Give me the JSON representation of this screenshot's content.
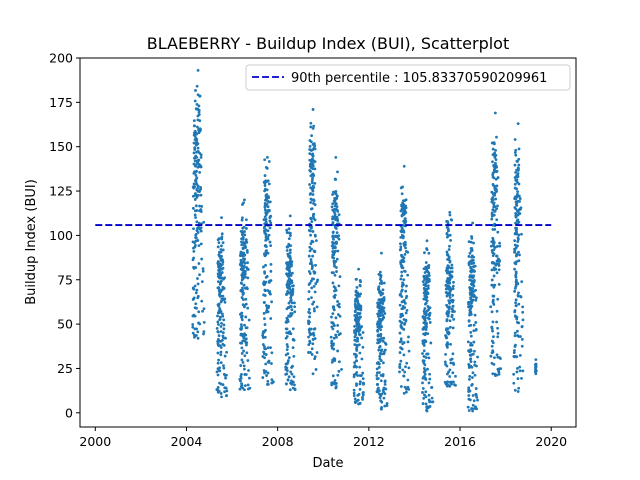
{
  "chart_data": {
    "type": "scatter",
    "title": "BLAEBERRY - Buildup Index (BUI), Scatterplot",
    "xlabel": "Date",
    "ylabel": "Buildup Index (BUI)",
    "xlim": [
      "1999-05-01",
      "2021-02-01"
    ],
    "ylim": [
      -8,
      200
    ],
    "x_ticks": [
      "2000",
      "2004",
      "2008",
      "2012",
      "2016",
      "2020"
    ],
    "y_ticks": [
      0,
      25,
      50,
      75,
      100,
      125,
      150,
      175,
      200
    ],
    "grid": false,
    "legend_position": "top-right",
    "colors": {
      "points": "#1f77b4",
      "reference_line": "#0000cc"
    },
    "reference_line": {
      "label": "90th percentile : 105.83370590209961",
      "y": 105.83370590209961,
      "x_range": [
        "2000-01-01",
        "2020-01-01"
      ],
      "style": "dashed"
    },
    "series": [
      {
        "seasons": [
          {
            "start": "2004-03-15",
            "end": "2004-10-25",
            "min": 42,
            "max": 193
          },
          {
            "start": "2005-04-10",
            "end": "2005-10-20",
            "min": 9,
            "max": 110
          },
          {
            "start": "2006-04-10",
            "end": "2006-10-25",
            "min": 13,
            "max": 120
          },
          {
            "start": "2007-04-15",
            "end": "2007-10-25",
            "min": 16,
            "max": 144
          },
          {
            "start": "2008-04-15",
            "end": "2008-10-25",
            "min": 13,
            "max": 111
          },
          {
            "start": "2009-04-15",
            "end": "2009-10-25",
            "min": 22,
            "max": 171
          },
          {
            "start": "2010-04-15",
            "end": "2010-10-25",
            "min": 14,
            "max": 144
          },
          {
            "start": "2011-04-15",
            "end": "2011-10-25",
            "min": 5,
            "max": 81
          },
          {
            "start": "2012-04-15",
            "end": "2012-10-25",
            "min": 2,
            "max": 90
          },
          {
            "start": "2013-04-15",
            "end": "2013-10-25",
            "min": 11,
            "max": 139
          },
          {
            "start": "2014-04-15",
            "end": "2014-10-25",
            "min": 1,
            "max": 97
          },
          {
            "start": "2015-04-15",
            "end": "2015-10-25",
            "min": 15,
            "max": 113
          },
          {
            "start": "2016-04-15",
            "end": "2016-10-25",
            "min": 1,
            "max": 107
          },
          {
            "start": "2017-04-15",
            "end": "2017-10-25",
            "min": 21,
            "max": 169
          },
          {
            "start": "2018-04-15",
            "end": "2018-10-25",
            "min": 12,
            "max": 163
          },
          {
            "start": "2019-04-20",
            "end": "2019-05-10",
            "min": 22,
            "max": 30
          }
        ]
      }
    ]
  }
}
